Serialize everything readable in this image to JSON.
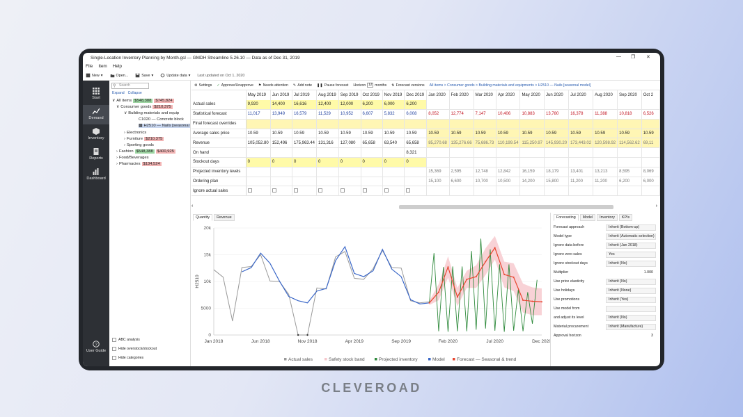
{
  "window": {
    "title": "Single-Location Inventory Planning by Month.gsl — GMDH Streamline 5.26.10  — Data as of Dec 31, 2019"
  },
  "menu": [
    "File",
    "Item",
    "Help"
  ],
  "toolbar": {
    "new": "New",
    "open": "Open...",
    "save": "Save",
    "update": "Update data",
    "last_updated": "Last updated on Oct 1, 2020"
  },
  "sidebar": [
    {
      "label": "Start",
      "icon": "grid-icon"
    },
    {
      "label": "Demand",
      "icon": "chart-line-icon"
    },
    {
      "label": "Inventory",
      "icon": "box-icon"
    },
    {
      "label": "Reports",
      "icon": "document-icon"
    },
    {
      "label": "Dashboard",
      "icon": "bar-chart-icon"
    },
    {
      "label": "User Guide",
      "icon": "help-icon"
    }
  ],
  "tree": {
    "search_placeholder": "Search",
    "expand": "Expand",
    "collapse": "Collapse",
    "nodes": [
      {
        "label": "All items",
        "g": "$548,388",
        "r": "$745,824"
      },
      {
        "label": "Consumer goods",
        "g": "",
        "r": "$210,375"
      },
      {
        "label": "Building materials and equip",
        "g": "",
        "r": ""
      },
      {
        "label": "C1020 — Concrete block",
        "g": "",
        "r": ""
      },
      {
        "label": "H2510 — Nails [seasonal",
        "g": "",
        "r": ""
      },
      {
        "label": "Electronics",
        "g": "",
        "r": ""
      },
      {
        "label": "Furniture",
        "g": "",
        "r": "$210,375"
      },
      {
        "label": "Sporting goods",
        "g": "",
        "r": ""
      },
      {
        "label": "Fashion",
        "g": "$548,388",
        "r": "$400,925"
      },
      {
        "label": "Food/Beverages",
        "g": "",
        "r": ""
      },
      {
        "label": "Pharmacies",
        "g": "",
        "r": "$134,524"
      }
    ],
    "options": [
      "ABC analysis",
      "Hide overstock/stockout",
      "Hide categories"
    ]
  },
  "settingsbar": {
    "settings": "Settings",
    "approve": "Approve/Unapprove",
    "needs_attention": "Needs attention",
    "add_note": "Add note",
    "pause": "Pause forecast",
    "horizon": "Horizon",
    "horizon_value": "12",
    "months": "months",
    "versions": "Forecast versions",
    "breadcrumb": "All items > Consumer goods > Building materials and equipments > H2510 — Nails [seasonal model]"
  },
  "grid": {
    "months": [
      "May 2019",
      "Jun 2019",
      "Jul 2019",
      "Aug 2019",
      "Sep 2019",
      "Oct 2019",
      "Nov 2019",
      "Dec 2019",
      "Jan 2020",
      "Feb 2020",
      "Mar 2020",
      "Apr 2020",
      "May 2020",
      "Jun 2020",
      "Jul 2020",
      "Aug 2020",
      "Sep 2020",
      "Oct 2"
    ],
    "rows": [
      {
        "label": "Actual sales",
        "cells": [
          "9,920",
          "14,400",
          "16,616",
          "12,400",
          "12,000",
          "6,200",
          "6,000",
          "6,200",
          "",
          "",
          "",
          "",
          "",
          "",
          "",
          "",
          "",
          ""
        ]
      },
      {
        "label": "Statistical forecast",
        "cells": [
          "11,017",
          "13,949",
          "16,579",
          "11,529",
          "10,952",
          "6,607",
          "5,832",
          "6,008",
          "8,052",
          "12,774",
          "7,147",
          "10,406",
          "10,883",
          "13,780",
          "16,378",
          "11,388",
          "10,818",
          "6,526"
        ]
      },
      {
        "label": "Final forecast overrides",
        "cells": [
          "",
          "",
          "",
          "",
          "",
          "",
          "",
          "",
          "",
          "",
          "",
          "",
          "",
          "",
          "",
          "",
          "",
          ""
        ]
      },
      {
        "label": "Average sales price",
        "cells": [
          "10.59",
          "10.59",
          "10.59",
          "10.59",
          "10.59",
          "10.59",
          "10.59",
          "10.59",
          "10.59",
          "10.59",
          "10.59",
          "10.59",
          "10.59",
          "10.59",
          "10.59",
          "10.59",
          "10.59",
          "10.59"
        ]
      },
      {
        "label": "Revenue",
        "cells": [
          "105,052.80",
          "152,496",
          "175,963.44",
          "131,316",
          "127,080",
          "65,658",
          "63,540",
          "65,658",
          "85,270.68",
          "135,276.66",
          "75,686.73",
          "110,199.54",
          "115,250.97",
          "145,930.20",
          "173,443.02",
          "120,598.92",
          "114,562.62",
          "69,11"
        ]
      },
      {
        "label": "On hand",
        "cells": [
          "",
          "",
          "",
          "",
          "",
          "",
          "",
          "8,321",
          "",
          "",
          "",
          "",
          "",
          "",
          "",
          "",
          "",
          ""
        ]
      },
      {
        "label": "Stockout days",
        "cells": [
          "0",
          "0",
          "0",
          "0",
          "0",
          "0",
          "0",
          "0",
          "",
          "",
          "",
          "",
          "",
          "",
          "",
          "",
          "",
          ""
        ]
      },
      {
        "label": "Projected inventory levels",
        "cells": [
          "",
          "",
          "",
          "",
          "",
          "",
          "",
          "",
          "15,369",
          "2,595",
          "12,748",
          "12,842",
          "16,159",
          "18,179",
          "13,401",
          "13,213",
          "8,595",
          "8,069"
        ]
      },
      {
        "label": "Ordering plan",
        "cells": [
          "",
          "",
          "",
          "",
          "",
          "",
          "",
          "",
          "15,100",
          "6,600",
          "10,700",
          "10,500",
          "14,200",
          "15,800",
          "11,200",
          "11,200",
          "6,200",
          "6,000"
        ]
      },
      {
        "label": "Ignore actual sales",
        "cells": []
      }
    ]
  },
  "chart_tabs": [
    "Quantity",
    "Revenue"
  ],
  "chart_data": {
    "type": "line",
    "ylabel": "H2510",
    "y_ticks": [
      "0",
      "5000",
      "10k",
      "15k",
      "20k"
    ],
    "x_ticks": [
      "Jan 2018",
      "Jun 2018",
      "Nov 2018",
      "Apr 2019",
      "Sep 2019",
      "Feb 2020",
      "Jul 2020",
      "Dec 2020"
    ],
    "ylim": [
      0,
      20000
    ],
    "legend": [
      "Actual sales",
      "Safety stock band",
      "Projected inventory",
      "Model",
      "Forecast — Seasonal & trend"
    ],
    "colors": {
      "actual": "#9a9a9a",
      "band": "#f6c7cc",
      "projected": "#2f8a3c",
      "model": "#3a67c8",
      "forecast": "#e8452f"
    },
    "actual": [
      12200,
      10800,
      2600,
      12600,
      12800,
      15000,
      10100,
      10000,
      7600,
      0,
      0,
      8800,
      8600,
      14600,
      15600,
      10600,
      10400,
      12400,
      15800,
      12600,
      12500,
      6400,
      6000,
      6200
    ],
    "model": [
      null,
      null,
      null,
      11800,
      12600,
      15300,
      13400,
      10100,
      7200,
      6400,
      6000,
      8200,
      8700,
      13900,
      16500,
      11500,
      10900,
      12000,
      16000,
      12300,
      10900,
      6600,
      5800,
      6000
    ],
    "forecast": [
      6000,
      8000,
      12700,
      7100,
      10400,
      10900,
      13700,
      16300,
      11300,
      10800,
      6500,
      6300,
      6200
    ],
    "band_upper": [
      6400,
      9500,
      14700,
      8800,
      12000,
      13000,
      16200,
      18500,
      13700,
      13400,
      9600,
      8900,
      8700
    ],
    "band_lower": [
      5600,
      6500,
      10700,
      5400,
      8800,
      8800,
      11200,
      14100,
      8900,
      8200,
      4200,
      3700,
      3700
    ],
    "projected": [
      6000,
      15300,
      700,
      12700,
      600,
      12800,
      700,
      12800,
      700,
      15700,
      1000,
      18000,
      1200,
      16000,
      800,
      13200,
      600,
      13200,
      800,
      8500,
      700,
      8000,
      2100,
      10300
    ]
  },
  "right_panel": {
    "tabs": [
      "Forecasting",
      "Model",
      "Inventory",
      "KPIs"
    ],
    "rows": [
      {
        "label": "Forecast approach",
        "value": "Inherit (Bottom-up)"
      },
      {
        "label": "Model type",
        "value": "Inherit (Automatic selection)"
      },
      {
        "label": "Ignore data before",
        "value": "Inherit (Jan 2018)"
      },
      {
        "label": "Ignore zero sales",
        "value": "Yes"
      },
      {
        "label": "Ignore stockout days",
        "value": "Inherit (No)"
      },
      {
        "label": "Multiplier",
        "value": "1.000"
      },
      {
        "label": "Use price elasticity",
        "value": "Inherit (No)"
      },
      {
        "label": "Use holidays",
        "value": "Inherit (None)"
      },
      {
        "label": "Use promotions",
        "value": "Inherit (Yes)"
      },
      {
        "label": "Use model from",
        "value": ""
      },
      {
        "label": "and adjust its level",
        "value": "Inherit (No)"
      },
      {
        "label": "Material procurement",
        "value": "Inherit (Manufacture)"
      },
      {
        "label": "Approval horizon",
        "value": "3"
      }
    ]
  },
  "brand": "CLEVEROAD"
}
